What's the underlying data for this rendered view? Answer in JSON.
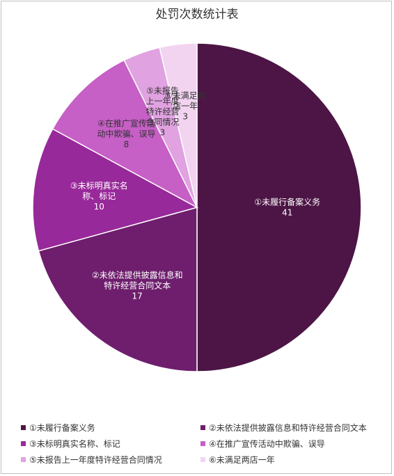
{
  "chart_data": {
    "type": "pie",
    "title": "处罚次数统计表",
    "categories": [
      "①未履行备案义务",
      "②未依法提供披露信息和特许经营合同文本",
      "③未标明真实名称、标记",
      "④在推广宣传活动中欺骗、误导",
      "⑤未报告上一年度特许经营合同情况",
      "⑥未满足两店一年"
    ],
    "values": [
      41,
      17,
      10,
      8,
      3,
      3
    ],
    "slice_labels": [
      [
        "①未履行备案义务"
      ],
      [
        "②未依法提供披露信息和",
        "特许经营合同文本"
      ],
      [
        "③未标明真实名",
        "称、标记"
      ],
      [
        "④在推广宣传活",
        "动中欺骗、误导"
      ],
      [
        "⑤未报告",
        "上一年度",
        "特许经营",
        "合同情况"
      ],
      [
        "⑥未满足两",
        "店一年"
      ]
    ],
    "colors": [
      "#4c1545",
      "#6e1e6d",
      "#98299a",
      "#c65fc6",
      "#e0a2e0",
      "#f2d4f1"
    ],
    "legend_position": "bottom"
  }
}
